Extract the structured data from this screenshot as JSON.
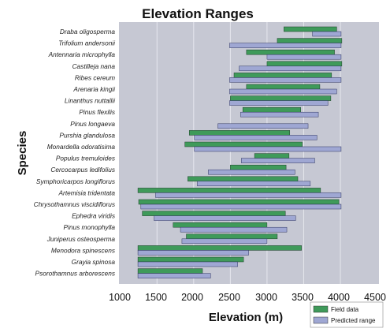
{
  "chart_data": {
    "type": "bar",
    "orientation": "horizontal-range",
    "title": "Elevation Ranges",
    "xlabel": "Elevation (m)",
    "ylabel": "Species",
    "xlim": [
      1000,
      4500
    ],
    "xticks": [
      "1000",
      "1500",
      "2000",
      "2500",
      "3000",
      "3500",
      "4000",
      "4500"
    ],
    "grid": "vertical",
    "legend_position": "bottom-right",
    "colors": {
      "field": "#3f9a5a",
      "predicted": "#9fa7d3",
      "plot_bg": "#c6c8d3",
      "grid": "#e6e7ee"
    },
    "categories": [
      "Draba oligosperma",
      "Trifolium andersonii",
      "Antennaria microphylla",
      "Castilleja nana",
      "Ribes cereum",
      "Arenaria kingii",
      "Linanthus nuttallii",
      "Pinus flexilis",
      "Pinus longaeva",
      "Purshia glandulosa",
      "Monardella odoratisima",
      "Populus tremuloides",
      "Cercocarpus ledifolius",
      "Symphoricarpos longiflorus",
      "Artemisia tridentata",
      "Chrysothamnus viscidiflorus",
      "Ephedra viridis",
      "Pinus monophylla",
      "Juniperus osteosperma",
      "Menodora spinescens",
      "Grayia spinosa",
      "Psorothamnus arborescens"
    ],
    "series": [
      {
        "name": "Field data",
        "ranges": [
          [
            3230,
            3950
          ],
          [
            3140,
            4020
          ],
          [
            2720,
            3920
          ],
          [
            3000,
            4020
          ],
          [
            2550,
            3880
          ],
          [
            2720,
            3720
          ],
          [
            2500,
            3870
          ],
          [
            2670,
            3460
          ],
          [
            null,
            null
          ],
          [
            1940,
            3310
          ],
          [
            1880,
            3480
          ],
          [
            2830,
            3300
          ],
          [
            2500,
            3260
          ],
          [
            1920,
            3420
          ],
          [
            1240,
            3730
          ],
          [
            1250,
            3980
          ],
          [
            1300,
            3250
          ],
          [
            1720,
            3000
          ],
          [
            1900,
            3140
          ],
          [
            1240,
            3470
          ],
          [
            1240,
            2680
          ],
          [
            1240,
            2120
          ]
        ]
      },
      {
        "name": "Predicted range",
        "ranges": [
          [
            3620,
            4010
          ],
          [
            2490,
            4010
          ],
          [
            3000,
            4010
          ],
          [
            2620,
            4010
          ],
          [
            2490,
            4010
          ],
          [
            2490,
            3950
          ],
          [
            2490,
            3830
          ],
          [
            2640,
            3700
          ],
          [
            2330,
            3560
          ],
          [
            2010,
            3680
          ],
          [
            2010,
            4010
          ],
          [
            2650,
            3650
          ],
          [
            2200,
            3380
          ],
          [
            2050,
            3590
          ],
          [
            1480,
            4010
          ],
          [
            1280,
            4010
          ],
          [
            1460,
            3390
          ],
          [
            1820,
            3270
          ],
          [
            1840,
            3000
          ],
          [
            1240,
            2750
          ],
          [
            1240,
            2600
          ],
          [
            1240,
            2230
          ]
        ]
      }
    ]
  }
}
